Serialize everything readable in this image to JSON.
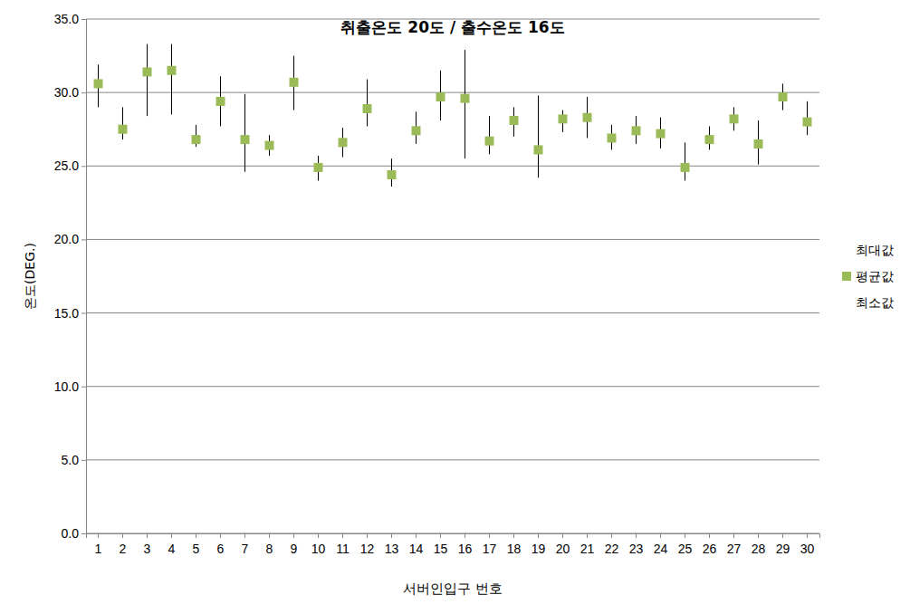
{
  "chart_data": {
    "type": "high-low",
    "title": "취출온도 20도 / 출수온도 16도",
    "x_label": "서버인입구 번호",
    "y_label": "온도(DEG.)",
    "categories": [
      "1",
      "2",
      "3",
      "4",
      "5",
      "6",
      "7",
      "8",
      "9",
      "10",
      "11",
      "12",
      "13",
      "14",
      "15",
      "16",
      "17",
      "18",
      "19",
      "20",
      "21",
      "22",
      "23",
      "24",
      "25",
      "26",
      "27",
      "28",
      "29",
      "30"
    ],
    "series": [
      {
        "name": "최대값",
        "color": "#000000",
        "marker": "none",
        "values": [
          31.9,
          29.0,
          33.3,
          33.3,
          27.8,
          31.1,
          29.9,
          27.1,
          32.5,
          25.7,
          27.6,
          30.9,
          25.5,
          28.7,
          31.5,
          32.9,
          28.4,
          29.0,
          29.8,
          28.8,
          29.7,
          27.8,
          28.4,
          28.3,
          26.6,
          27.7,
          29.0,
          28.1,
          30.6,
          29.4
        ]
      },
      {
        "name": "평균값",
        "color": "#9bbb59",
        "marker": "square",
        "values": [
          30.6,
          27.5,
          31.4,
          31.5,
          26.8,
          29.4,
          26.8,
          26.4,
          30.7,
          24.9,
          26.6,
          28.9,
          24.4,
          27.4,
          29.7,
          29.6,
          26.7,
          28.1,
          26.1,
          28.2,
          28.3,
          26.9,
          27.4,
          27.2,
          24.9,
          26.8,
          28.2,
          26.5,
          29.7,
          28.0
        ]
      },
      {
        "name": "최소값",
        "color": "#000000",
        "marker": "none",
        "values": [
          29.0,
          26.8,
          28.4,
          28.5,
          26.3,
          27.7,
          24.6,
          25.7,
          28.8,
          24.0,
          25.6,
          27.7,
          23.6,
          26.5,
          28.1,
          25.5,
          25.8,
          27.0,
          24.2,
          27.3,
          26.9,
          26.1,
          26.5,
          26.2,
          24.0,
          26.1,
          27.4,
          25.1,
          28.8,
          27.1
        ]
      }
    ],
    "ylim": [
      0,
      35
    ],
    "yticks": [
      {
        "value": 0,
        "label": "0.0"
      },
      {
        "value": 5,
        "label": "5.0"
      },
      {
        "value": 10,
        "label": "10.0"
      },
      {
        "value": 15,
        "label": "15.0"
      },
      {
        "value": 20,
        "label": "20.0"
      },
      {
        "value": 25,
        "label": "25.0"
      },
      {
        "value": 30,
        "label": "30.0"
      },
      {
        "value": 35,
        "label": "35.0"
      }
    ],
    "grid": true,
    "legend": "right"
  }
}
